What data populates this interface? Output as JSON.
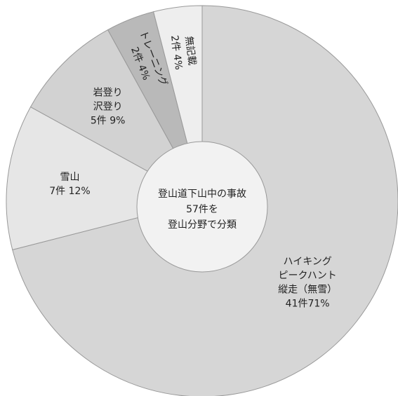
{
  "chart_data": {
    "type": "donut",
    "center_label": [
      "登山道下山中の事故",
      "57件を",
      "登山分野で分類"
    ],
    "categories": [
      [
        "ハイキング",
        "ピークハント",
        "縦走（無雪）"
      ],
      [
        "雪山"
      ],
      [
        "岩登り",
        "沢登り"
      ],
      [
        "トレーニング"
      ],
      [
        "無記載"
      ]
    ],
    "values": [
      71,
      12,
      9,
      4,
      4
    ],
    "value_labels": [
      "41件71%",
      "7件 12%",
      "5件 9%",
      "2件 4%",
      "2件 4%"
    ],
    "colors": [
      "#d6d6d6",
      "#e6e6e6",
      "#d2d2d2",
      "#b9b9b9",
      "#eeeeee"
    ]
  }
}
